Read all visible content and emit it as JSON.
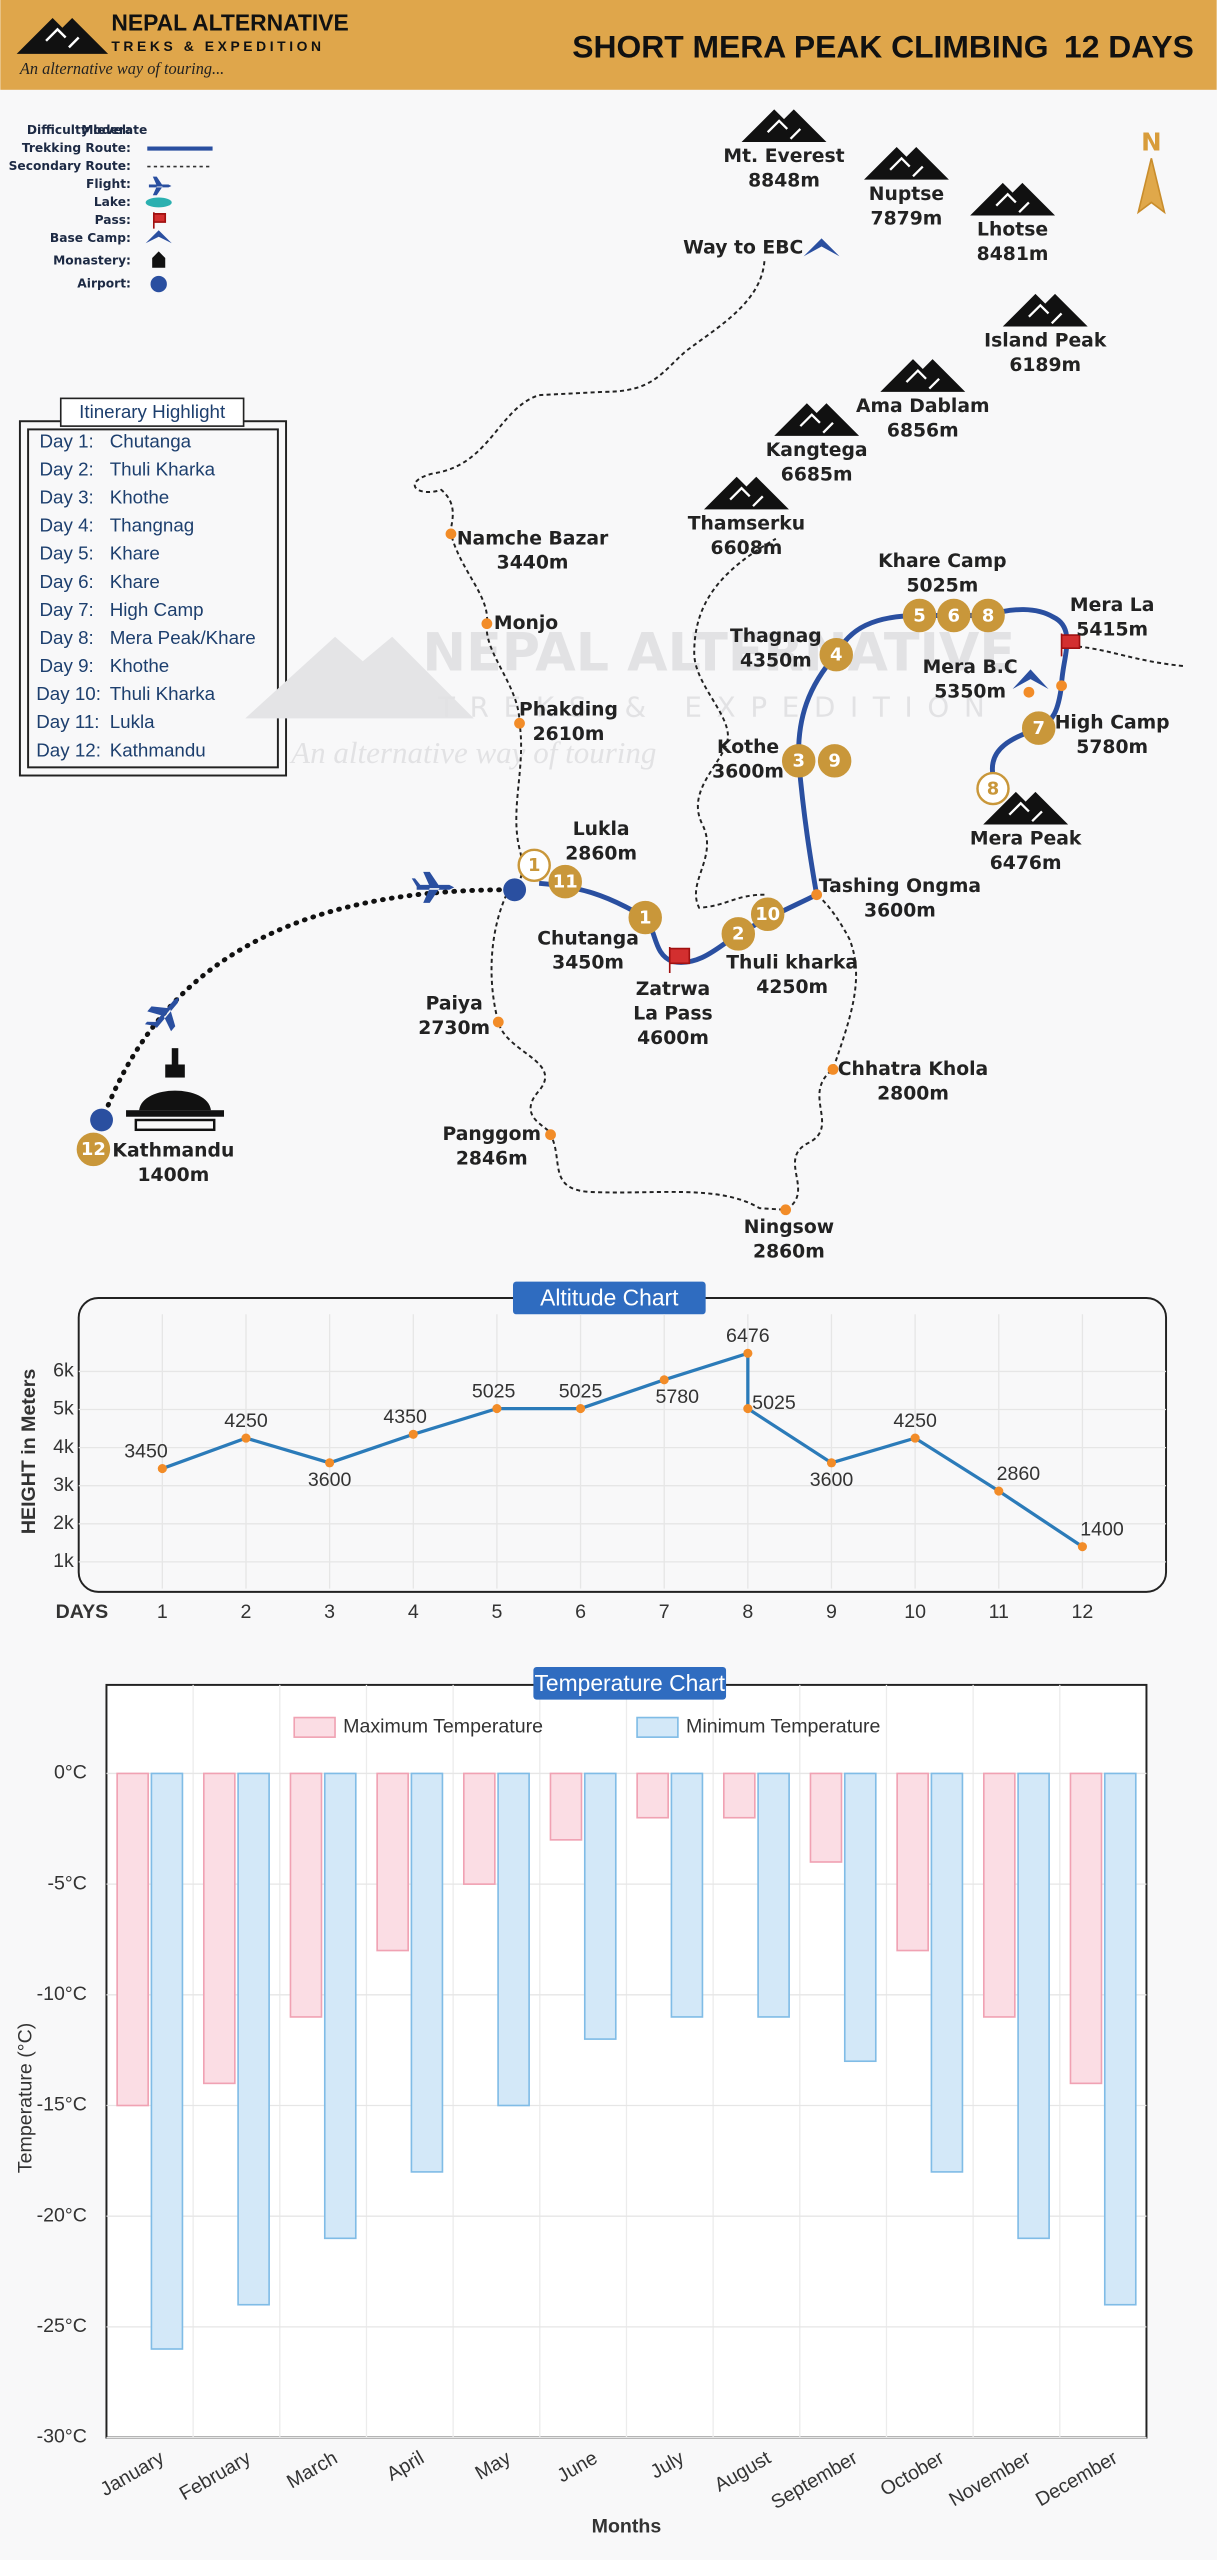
{
  "header": {
    "brand": "NEPAL ALTERNATIVE",
    "brand_sub": "TREKS & EXPEDITION",
    "tagline": "An alternative way of touring...",
    "title": "SHORT MERA PEAK CLIMBING",
    "duration": "12 DAYS"
  },
  "compass": "N",
  "legend": {
    "items": [
      {
        "label": "Difficulty level:",
        "value": "Moderate"
      },
      {
        "label": "Trekking Route:"
      },
      {
        "label": "Secondary Route:"
      },
      {
        "label": "Flight:"
      },
      {
        "label": "Lake:"
      },
      {
        "label": "Pass:"
      },
      {
        "label": "Base Camp:"
      },
      {
        "label": "Monastery:"
      },
      {
        "label": "Airport:"
      }
    ]
  },
  "itinerary": {
    "title": "Itinerary Highlight",
    "days": [
      {
        "day": "Day 1:",
        "place": "Chutanga"
      },
      {
        "day": "Day 2:",
        "place": "Thuli Kharka"
      },
      {
        "day": "Day 3:",
        "place": "Khothe"
      },
      {
        "day": "Day 4:",
        "place": "Thangnag"
      },
      {
        "day": "Day 5:",
        "place": "Khare"
      },
      {
        "day": "Day 6:",
        "place": "Khare"
      },
      {
        "day": "Day 7:",
        "place": "High Camp"
      },
      {
        "day": "Day 8:",
        "place": "Mera Peak/Khare"
      },
      {
        "day": "Day 9:",
        "place": "Khothe"
      },
      {
        "day": "Day 10:",
        "place": "Thuli Kharka"
      },
      {
        "day": "Day 11:",
        "place": "Lukla"
      },
      {
        "day": "Day 12:",
        "place": "Kathmandu"
      }
    ]
  },
  "map": {
    "way_to_ebc": "Way to EBC",
    "peaks": [
      {
        "name": "Mt. Everest",
        "altitude": "8848m"
      },
      {
        "name": "Nuptse",
        "altitude": "7879m"
      },
      {
        "name": "Lhotse",
        "altitude": "8481m"
      },
      {
        "name": "Island Peak",
        "altitude": "6189m"
      },
      {
        "name": "Ama Dablam",
        "altitude": "6856m"
      },
      {
        "name": "Kangtega",
        "altitude": "6685m"
      },
      {
        "name": "Thamserku",
        "altitude": "6608m"
      },
      {
        "name": "Mera Peak",
        "altitude": "6476m"
      }
    ],
    "places": [
      {
        "name": "Namche Bazar",
        "altitude": "3440m"
      },
      {
        "name": "Monjo"
      },
      {
        "name": "Phakding",
        "altitude": "2610m"
      },
      {
        "name": "Lukla",
        "altitude": "2860m"
      },
      {
        "name": "Chutanga",
        "altitude": "3450m"
      },
      {
        "name_lines": [
          "Zatrwa",
          "La Pass"
        ],
        "altitude": "4600m"
      },
      {
        "name": "Thuli kharka",
        "altitude": "4250m"
      },
      {
        "name": "Tashing Ongma",
        "altitude": "3600m"
      },
      {
        "name": "Chhatra Khola",
        "altitude": "2800m"
      },
      {
        "name": "Ningsow",
        "altitude": "2860m"
      },
      {
        "name": "Panggom",
        "altitude": "2846m"
      },
      {
        "name": "Paiya",
        "altitude": "2730m"
      },
      {
        "name": "Kothe",
        "altitude": "3600m"
      },
      {
        "name": "Thagnag",
        "altitude": "4350m"
      },
      {
        "name": "Khare Camp",
        "altitude": "5025m"
      },
      {
        "name": "Mera La",
        "altitude": "5415m"
      },
      {
        "name": "Mera B.C",
        "altitude": "5350m"
      },
      {
        "name": "High Camp",
        "altitude": "5780m"
      },
      {
        "name": "Kathmandu",
        "altitude": "1400m"
      }
    ],
    "day_markers": [
      "1",
      "2",
      "10",
      "3",
      "9",
      "4",
      "5",
      "6",
      "8",
      "7",
      "11",
      "12",
      "1",
      "8"
    ],
    "watermark": {
      "brand": "NEPAL ALTERNATIVE",
      "sub": "TREKS & EXPEDITION",
      "tagline": "An alternative way of touring"
    }
  },
  "chart_data": [
    {
      "type": "line",
      "title": "Altitude Chart",
      "y_label": "HEIGHT in Meters",
      "x_label": "DAYS",
      "x": [
        1,
        2,
        3,
        4,
        5,
        6,
        7,
        8,
        8,
        9,
        10,
        11,
        12
      ],
      "values": [
        3450,
        4250,
        3600,
        4350,
        5025,
        5025,
        5780,
        6476,
        5025,
        3600,
        4250,
        2860,
        1400
      ],
      "color": "#2b7bb9",
      "marker_color": "#f28c28",
      "xlim": [
        0,
        13
      ],
      "xticks": [
        1,
        2,
        3,
        4,
        5,
        6,
        7,
        8,
        9,
        10,
        11,
        12
      ],
      "ylim": [
        300,
        7500
      ],
      "yticks": [
        {
          "value": 1000,
          "label": "1k"
        },
        {
          "value": 2000,
          "label": "2k"
        },
        {
          "value": 3000,
          "label": "3k"
        },
        {
          "value": 4000,
          "label": "4k"
        },
        {
          "value": 5000,
          "label": "5k"
        },
        {
          "value": 6000,
          "label": "6k"
        }
      ],
      "grid": true
    },
    {
      "type": "bar",
      "title": "Temperature Chart",
      "y_label": "Temperature (°C)",
      "x_label": "Months",
      "categories": [
        "January",
        "February",
        "March",
        "April",
        "May",
        "June",
        "July",
        "August",
        "September",
        "October",
        "November",
        "December"
      ],
      "series": [
        {
          "name": "Maximum Temperature",
          "color": "#fbdde4",
          "stroke": "#f0a2b3",
          "values": [
            -15,
            -14,
            -11,
            -8,
            -5,
            -3,
            -2,
            -2,
            -4,
            -8,
            -11,
            -14
          ]
        },
        {
          "name": "Minimum Temperature",
          "color": "#d3e8f8",
          "stroke": "#80bce6",
          "values": [
            -26,
            -24,
            -21,
            -18,
            -15,
            -12,
            -11,
            -11,
            -13,
            -18,
            -21,
            -24
          ]
        }
      ],
      "ylim": [
        -30,
        4
      ],
      "yticks": [
        {
          "value": 0,
          "label": "0°C"
        },
        {
          "value": -5,
          "label": "-5°C"
        },
        {
          "value": -10,
          "label": "-10°C"
        },
        {
          "value": -15,
          "label": "-15°C"
        },
        {
          "value": -20,
          "label": "-20°C"
        },
        {
          "value": -25,
          "label": "-25°C"
        },
        {
          "value": -30,
          "label": "-30°C"
        }
      ],
      "grid": true,
      "legend": "top"
    }
  ]
}
